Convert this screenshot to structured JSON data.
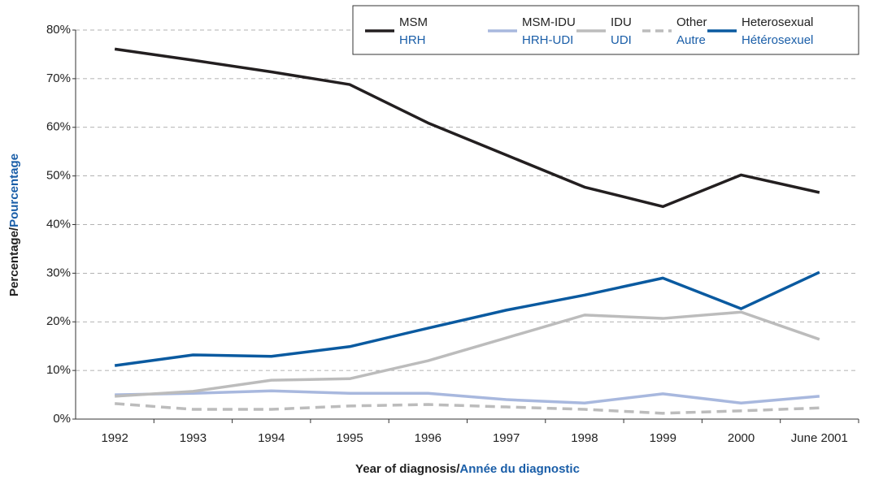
{
  "chart_data": {
    "type": "line",
    "x_label": {
      "en": "Year of diagnosis/",
      "fr": "Année du diagnostic"
    },
    "y_label": {
      "en": "Percentage/",
      "fr": "Pourcentage"
    },
    "categories": [
      "1992",
      "1993",
      "1994",
      "1995",
      "1996",
      "1997",
      "1998",
      "1999",
      "2000",
      "June 2001"
    ],
    "series": [
      {
        "name": "MSM",
        "name_fr": "HRH",
        "color": "#231f20",
        "dashed": false,
        "values": [
          76.1,
          73.8,
          71.4,
          68.8,
          60.9,
          54.3,
          47.7,
          43.7,
          50.2,
          46.6
        ]
      },
      {
        "name": "MSM-IDU",
        "name_fr": "HRH-UDI",
        "color": "#a8b8de",
        "dashed": false,
        "values": [
          5.0,
          5.3,
          5.8,
          5.3,
          5.3,
          4.0,
          3.3,
          5.2,
          3.3,
          4.7
        ]
      },
      {
        "name": "IDU",
        "name_fr": "UDI",
        "color": "#bcbcbc",
        "dashed": false,
        "values": [
          4.7,
          5.7,
          8.0,
          8.3,
          12.0,
          16.7,
          21.4,
          20.7,
          22.0,
          16.4
        ]
      },
      {
        "name": "Other",
        "name_fr": "Autre",
        "color": "#bcbcbc",
        "dashed": true,
        "values": [
          3.2,
          2.0,
          2.0,
          2.7,
          3.0,
          2.5,
          2.0,
          1.2,
          1.7,
          2.3
        ]
      },
      {
        "name": "Heterosexual",
        "name_fr": "Hétérosexuel",
        "color": "#0a5aa0",
        "dashed": false,
        "values": [
          11.0,
          13.2,
          12.9,
          14.9,
          18.7,
          22.4,
          25.5,
          29.0,
          22.7,
          30.2
        ]
      }
    ],
    "ylim": [
      0,
      80
    ],
    "yticks": [
      {
        "value": 0,
        "label": "0%"
      },
      {
        "value": 10,
        "label": "10%"
      },
      {
        "value": 20,
        "label": "20%"
      },
      {
        "value": 30,
        "label": "30%"
      },
      {
        "value": 40,
        "label": "40%"
      },
      {
        "value": 50,
        "label": "50%"
      },
      {
        "value": 60,
        "label": "60%"
      },
      {
        "value": 70,
        "label": "70%"
      },
      {
        "value": 80,
        "label": "80%"
      }
    ],
    "grid": true,
    "legend": "top-right"
  }
}
